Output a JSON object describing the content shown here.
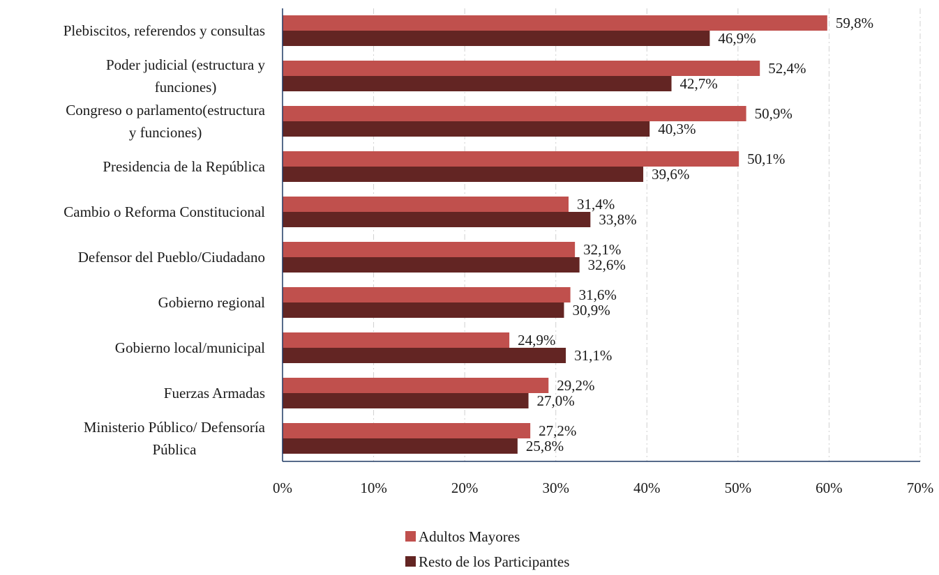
{
  "chart_data": {
    "type": "bar",
    "orientation": "horizontal",
    "categories": [
      [
        "Plebiscitos, referendos y consultas"
      ],
      [
        "Poder judicial (estructura y",
        "funciones)"
      ],
      [
        "Congreso o parlamento(estructura",
        "y funciones)"
      ],
      [
        "Presidencia de la República"
      ],
      [
        "Cambio o Reforma Constitucional"
      ],
      [
        "Defensor del Pueblo/Ciudadano"
      ],
      [
        "Gobierno regional"
      ],
      [
        "Gobierno local/municipal"
      ],
      [
        "Fuerzas Armadas"
      ],
      [
        "Ministerio Público/ Defensoría",
        "Pública"
      ]
    ],
    "series": [
      {
        "name": "Adultos Mayores",
        "color": "#c0504d",
        "values": [
          59.8,
          52.4,
          50.9,
          50.1,
          31.4,
          32.1,
          31.6,
          24.9,
          29.2,
          27.2
        ],
        "labels": [
          "59,8%",
          "52,4%",
          "50,9%",
          "50,1%",
          "31,4%",
          "32,1%",
          "31,6%",
          "24,9%",
          "29,2%",
          "27,2%"
        ]
      },
      {
        "name": "Resto de los Participantes",
        "color": "#632523",
        "values": [
          46.9,
          42.7,
          40.3,
          39.6,
          33.8,
          32.6,
          30.9,
          31.1,
          27.0,
          25.8
        ],
        "labels": [
          "46,9%",
          "42,7%",
          "40,3%",
          "39,6%",
          "33,8%",
          "32,6%",
          "30,9%",
          "31,1%",
          "27,0%",
          "25,8%"
        ]
      }
    ],
    "xlim": [
      0,
      70
    ],
    "xticks": [
      0,
      10,
      20,
      30,
      40,
      50,
      60,
      70
    ],
    "xtick_labels": [
      "0%",
      "10%",
      "20%",
      "30%",
      "40%",
      "50%",
      "60%",
      "70%"
    ],
    "grid": "vertical dashed",
    "legend_position": "bottom",
    "axis_color": "#1f3864",
    "grid_color": "#d0d0d0"
  }
}
